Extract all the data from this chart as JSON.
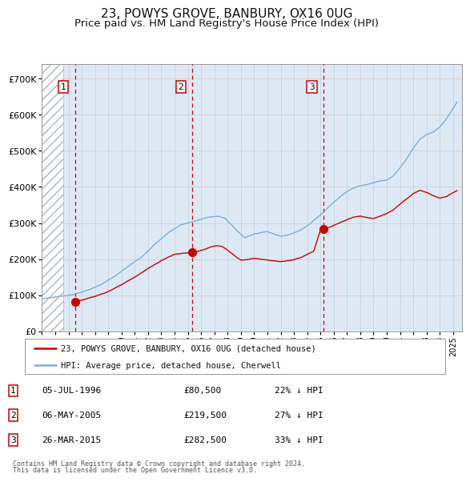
{
  "title": "23, POWYS GROVE, BANBURY, OX16 0UG",
  "subtitle": "Price paid vs. HM Land Registry's House Price Index (HPI)",
  "title_fontsize": 11,
  "subtitle_fontsize": 9.5,
  "ylabel_ticks": [
    "£0",
    "£100K",
    "£200K",
    "£300K",
    "£400K",
    "£500K",
    "£600K",
    "£700K"
  ],
  "ylabel_values": [
    0,
    100000,
    200000,
    300000,
    400000,
    500000,
    600000,
    700000
  ],
  "ylim": [
    0,
    740000
  ],
  "xlim_start": 1994.0,
  "xlim_end": 2025.7,
  "hatch_end_year": 1995.58,
  "sale_dates": [
    1996.51,
    2005.35,
    2015.24
  ],
  "sale_prices": [
    80500,
    219500,
    282500
  ],
  "sale_labels": [
    "1",
    "2",
    "3"
  ],
  "legend_line1": "23, POWYS GROVE, BANBURY, OX16 0UG (detached house)",
  "legend_line2": "HPI: Average price, detached house, Cherwell",
  "table_rows": [
    {
      "num": "1",
      "date": "05-JUL-1996",
      "price": "£80,500",
      "pct": "22% ↓ HPI"
    },
    {
      "num": "2",
      "date": "06-MAY-2005",
      "price": "£219,500",
      "pct": "27% ↓ HPI"
    },
    {
      "num": "3",
      "date": "26-MAR-2015",
      "price": "£282,500",
      "pct": "33% ↓ HPI"
    }
  ],
  "footnote1": "Contains HM Land Registry data © Crown copyright and database right 2024.",
  "footnote2": "This data is licensed under the Open Government Licence v3.0.",
  "red_line_color": "#cc0000",
  "blue_line_color": "#7bafd4",
  "hatch_color": "#cccccc",
  "grid_color": "#cccccc",
  "dashed_color": "#cc0000",
  "background_plot": "#dce9f5",
  "background_fig": "#ffffff"
}
